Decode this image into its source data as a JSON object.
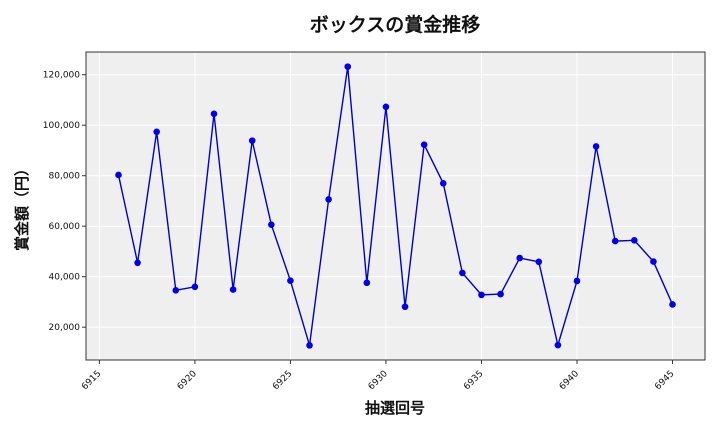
{
  "chart_data": {
    "type": "line",
    "title": "ボックスの賞金推移",
    "xlabel": "抽選回号",
    "ylabel": "賞金額（円）",
    "xlim": [
      6914.3,
      6946.7
    ],
    "ylim": [
      7000,
      129000
    ],
    "x_ticks": [
      6915,
      6920,
      6925,
      6930,
      6935,
      6940,
      6945
    ],
    "x_tick_labels": [
      "6915",
      "6920",
      "6925",
      "6930",
      "6935",
      "6940",
      "6945"
    ],
    "y_ticks": [
      20000,
      40000,
      60000,
      80000,
      100000,
      120000
    ],
    "y_tick_labels": [
      "20,000",
      "40,000",
      "60,000",
      "80,000",
      "100,000",
      "120,000"
    ],
    "grid": true,
    "colors": {
      "line": "#0000cc",
      "marker": "#0000ee",
      "plot_bg": "#efefef",
      "grid": "#ffffff"
    },
    "series": [
      {
        "x": [
          6916,
          6917,
          6918,
          6919,
          6920,
          6921,
          6922,
          6923,
          6924,
          6925,
          6926,
          6927,
          6928,
          6929,
          6930,
          6931,
          6932,
          6933,
          6934,
          6935,
          6936,
          6937,
          6938,
          6939,
          6940,
          6941,
          6942,
          6943,
          6944,
          6945
        ],
        "values": [
          80300,
          45500,
          97400,
          34600,
          36000,
          104500,
          34900,
          93900,
          60600,
          38400,
          12800,
          70600,
          123200,
          37600,
          107300,
          28100,
          92300,
          77000,
          41500,
          32800,
          33100,
          47400,
          45900,
          12900,
          38300,
          91600,
          54100,
          54400,
          46000,
          29000
        ]
      }
    ]
  }
}
